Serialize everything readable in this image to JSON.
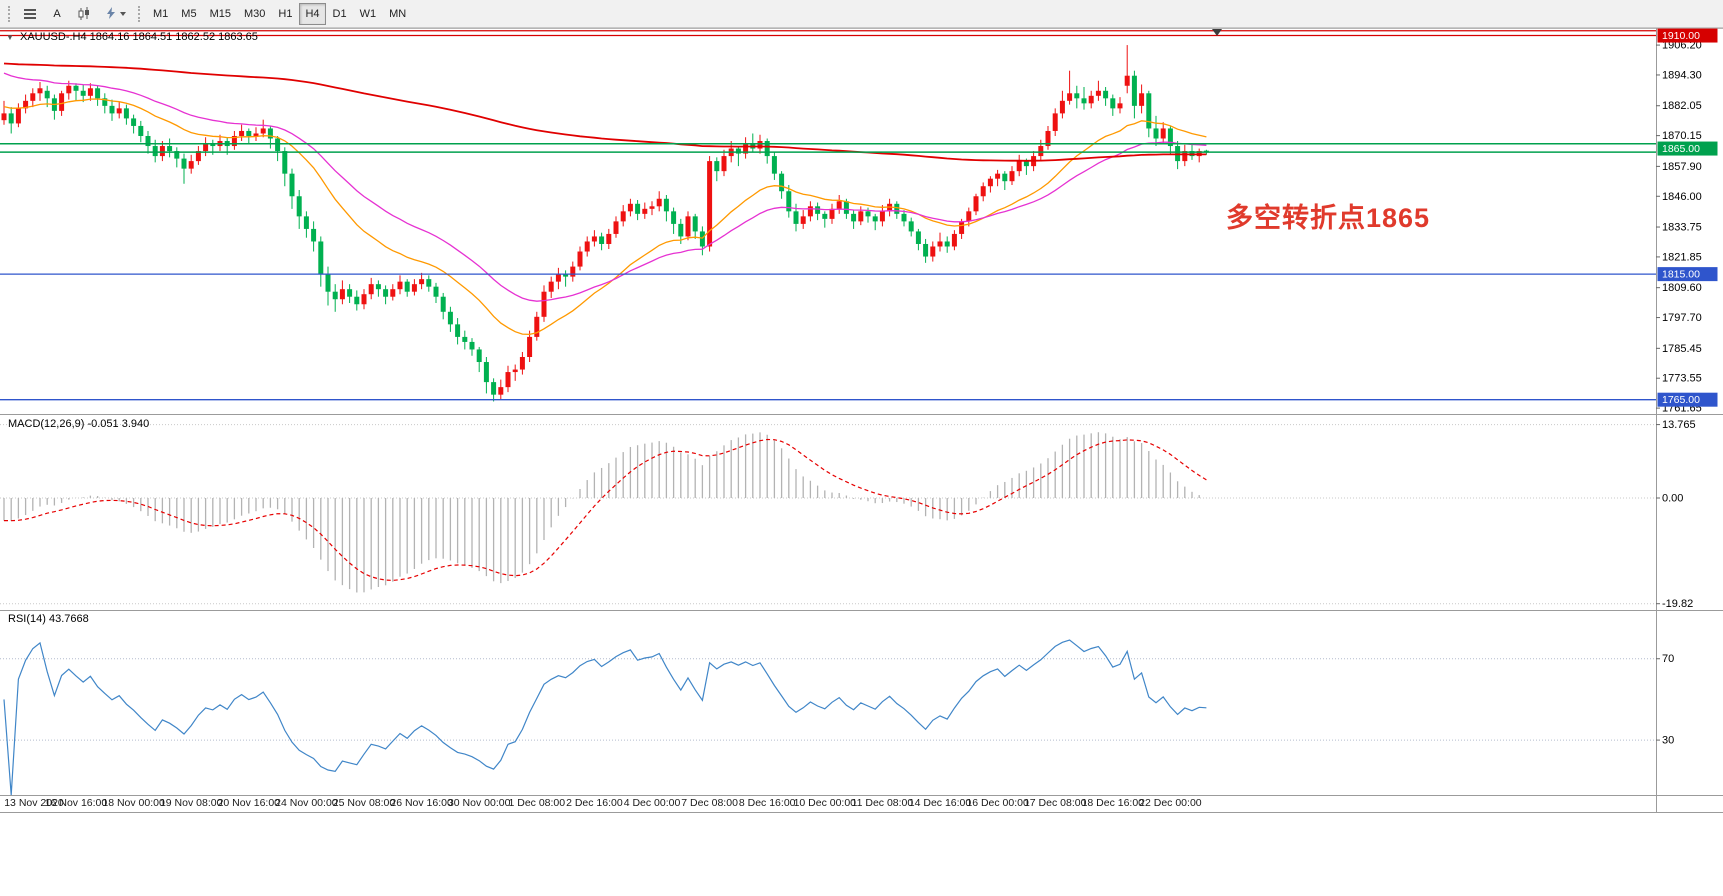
{
  "toolbar": {
    "font_button_label": "A",
    "timeframes": [
      "M1",
      "M5",
      "M15",
      "M30",
      "H1",
      "H4",
      "D1",
      "W1",
      "MN"
    ],
    "active_timeframe": "H4"
  },
  "chart_data": {
    "type": "candlestick",
    "symbol": "XAUUSD-",
    "timeframe": "H4",
    "ohlc_label": "XAUUSD-.H4 1864.16 1864.51 1862.52 1863.65",
    "current_ohlc": {
      "open": 1864.16,
      "high": 1864.51,
      "low": 1862.52,
      "close": 1863.65
    },
    "annotation": {
      "text": "多空转折点1865",
      "color": "#e03a2c"
    },
    "up_color": "#ee1111",
    "down_color": "#00b050",
    "price_axis": {
      "range": [
        1759.7,
        1913.0
      ],
      "ticks": [
        1906.2,
        1894.3,
        1882.05,
        1870.15,
        1857.9,
        1846.0,
        1833.75,
        1821.85,
        1809.6,
        1797.7,
        1785.45,
        1773.55,
        1761.65
      ]
    },
    "h_lines": [
      {
        "price": 1911.9,
        "color": "#d60000",
        "width": 1.3
      },
      {
        "price": 1910.0,
        "color": "#d60000",
        "width": 1.3
      },
      {
        "price": 1866.9,
        "color": "#00a14e",
        "width": 1.5
      },
      {
        "price": 1863.6,
        "color": "#00a14e",
        "width": 1.5
      },
      {
        "price": 1815.0,
        "color": "#2f55cc",
        "width": 1.3
      },
      {
        "price": 1765.0,
        "color": "#2f55cc",
        "width": 1.3
      }
    ],
    "price_tags": [
      {
        "price": 1910.0,
        "label": "1910.00",
        "color": "#d60000"
      },
      {
        "price": 1865.0,
        "label": "1865.00",
        "color": "#00a14e"
      },
      {
        "price": 1815.0,
        "label": "1815.00",
        "color": "#2f55cc"
      },
      {
        "price": 1765.0,
        "label": "1765.00",
        "color": "#2f55cc"
      }
    ],
    "moving_averages": [
      {
        "period": 20,
        "seed": 1882,
        "color": "#ff9900",
        "width": 1.3
      },
      {
        "period": 35,
        "seed": 1896,
        "color": "#e632d2",
        "width": 1.3
      },
      {
        "period": 280,
        "seed": 1899,
        "color": "#e00000",
        "width": 1.8
      }
    ],
    "macd": {
      "label": "MACD(12,26,9) -0.051 3.940",
      "fast": 12,
      "slow": 26,
      "signal": 9,
      "seed_fast": 1880,
      "seed_slow": 1884.5,
      "range": [
        -21,
        15
      ],
      "ticks": [
        {
          "value": 13.765,
          "label": "13.765"
        },
        {
          "value": 0,
          "label": "0.00"
        },
        {
          "value": -19.82,
          "label": "-19.82"
        }
      ],
      "hist_color": "#b3b3b3",
      "signal_color": "#e60000"
    },
    "rsi": {
      "label": "RSI(14) 43.7668",
      "period": 14,
      "range": [
        3,
        92
      ],
      "levels": [
        70,
        30
      ],
      "color": "#4086c8"
    },
    "time_labels": [
      {
        "text": "13 Nov 2020",
        "index": 0
      },
      {
        "text": "16 Nov 16:00",
        "index": 10
      },
      {
        "text": "18 Nov 00:00",
        "index": 18
      },
      {
        "text": "19 Nov 08:00",
        "index": 26
      },
      {
        "text": "20 Nov 16:00",
        "index": 34
      },
      {
        "text": "24 Nov 00:00",
        "index": 42
      },
      {
        "text": "25 Nov 08:00",
        "index": 50
      },
      {
        "text": "26 Nov 16:00",
        "index": 58
      },
      {
        "text": "30 Nov 00:00",
        "index": 66
      },
      {
        "text": "1 Dec 08:00",
        "index": 74
      },
      {
        "text": "2 Dec 16:00",
        "index": 82
      },
      {
        "text": "4 Dec 00:00",
        "index": 90
      },
      {
        "text": "7 Dec 08:00",
        "index": 98
      },
      {
        "text": "8 Dec 16:00",
        "index": 106
      },
      {
        "text": "10 Dec 00:00",
        "index": 114
      },
      {
        "text": "11 Dec 08:00",
        "index": 122
      },
      {
        "text": "14 Dec 16:00",
        "index": 130
      },
      {
        "text": "16 Dec 00:00",
        "index": 138
      },
      {
        "text": "17 Dec 08:00",
        "index": 146
      },
      {
        "text": "18 Dec 16:00",
        "index": 154
      },
      {
        "text": "22 Dec 00:00",
        "index": 162
      }
    ],
    "candles": [
      [
        1876.3,
        1884.0,
        1874.5,
        1879.0
      ],
      [
        1879.0,
        1881.5,
        1871.0,
        1875.0
      ],
      [
        1875.0,
        1883.0,
        1873.5,
        1881.0
      ],
      [
        1881.0,
        1886.5,
        1879.0,
        1884.0
      ],
      [
        1884.0,
        1889.0,
        1881.5,
        1887.0
      ],
      [
        1887.0,
        1891.5,
        1884.0,
        1889.0
      ],
      [
        1888.0,
        1890.0,
        1881.5,
        1885.0
      ],
      [
        1885.0,
        1886.5,
        1876.5,
        1880.0
      ],
      [
        1880.0,
        1888.0,
        1878.0,
        1887.0
      ],
      [
        1887.0,
        1892.0,
        1884.5,
        1890.0
      ],
      [
        1890.0,
        1891.0,
        1884.0,
        1888.0
      ],
      [
        1888.0,
        1890.5,
        1883.5,
        1886.0
      ],
      [
        1886.0,
        1891.0,
        1884.0,
        1889.0
      ],
      [
        1889.0,
        1890.0,
        1882.0,
        1885.0
      ],
      [
        1885.0,
        1887.0,
        1879.0,
        1882.0
      ],
      [
        1882.0,
        1884.5,
        1876.0,
        1879.0
      ],
      [
        1879.0,
        1883.5,
        1877.0,
        1881.0
      ],
      [
        1881.0,
        1882.5,
        1874.5,
        1877.0
      ],
      [
        1877.0,
        1878.5,
        1871.0,
        1874.0
      ],
      [
        1874.0,
        1876.0,
        1867.5,
        1870.0
      ],
      [
        1870.0,
        1872.0,
        1863.0,
        1866.0
      ],
      [
        1866.0,
        1868.5,
        1859.5,
        1862.0
      ],
      [
        1862.0,
        1868.0,
        1860.0,
        1866.0
      ],
      [
        1866.0,
        1869.0,
        1861.5,
        1864.0
      ],
      [
        1864.0,
        1865.5,
        1857.5,
        1861.0
      ],
      [
        1861.0,
        1863.0,
        1851.0,
        1857.0
      ],
      [
        1857.0,
        1862.5,
        1855.0,
        1860.0
      ],
      [
        1860.0,
        1866.0,
        1858.5,
        1864.0
      ],
      [
        1864.0,
        1869.5,
        1862.0,
        1867.0
      ],
      [
        1867.0,
        1868.5,
        1862.5,
        1866.0
      ],
      [
        1866.0,
        1870.5,
        1864.0,
        1868.0
      ],
      [
        1868.0,
        1869.5,
        1862.5,
        1866.0
      ],
      [
        1866.0,
        1872.0,
        1864.5,
        1870.0
      ],
      [
        1870.0,
        1874.5,
        1868.0,
        1872.0
      ],
      [
        1872.0,
        1873.0,
        1867.0,
        1870.0
      ],
      [
        1870.0,
        1873.5,
        1868.0,
        1871.0
      ],
      [
        1871.0,
        1876.5,
        1869.5,
        1873.0
      ],
      [
        1873.0,
        1874.0,
        1865.0,
        1869.0
      ],
      [
        1869.0,
        1870.0,
        1860.0,
        1864.0
      ],
      [
        1864.0,
        1865.5,
        1850.0,
        1855.0
      ],
      [
        1855.0,
        1857.0,
        1841.0,
        1846.0
      ],
      [
        1846.0,
        1848.5,
        1833.0,
        1838.0
      ],
      [
        1838.0,
        1840.0,
        1829.5,
        1833.0
      ],
      [
        1833.0,
        1836.0,
        1824.0,
        1828.0
      ],
      [
        1828.0,
        1830.0,
        1810.0,
        1815.0
      ],
      [
        1815.0,
        1818.0,
        1802.5,
        1808.0
      ],
      [
        1808.0,
        1811.0,
        1800.0,
        1805.0
      ],
      [
        1805.0,
        1812.5,
        1803.0,
        1809.0
      ],
      [
        1809.0,
        1811.0,
        1803.5,
        1806.0
      ],
      [
        1806.0,
        1808.5,
        1800.5,
        1803.0
      ],
      [
        1803.0,
        1809.0,
        1801.0,
        1807.0
      ],
      [
        1807.0,
        1813.5,
        1805.0,
        1811.0
      ],
      [
        1811.0,
        1812.5,
        1806.0,
        1809.0
      ],
      [
        1809.0,
        1810.5,
        1803.0,
        1806.0
      ],
      [
        1806.0,
        1811.0,
        1804.5,
        1809.0
      ],
      [
        1809.0,
        1814.5,
        1807.0,
        1812.0
      ],
      [
        1812.0,
        1813.0,
        1806.0,
        1808.0
      ],
      [
        1808.0,
        1813.0,
        1806.5,
        1811.0
      ],
      [
        1811.0,
        1815.5,
        1809.0,
        1813.0
      ],
      [
        1813.0,
        1814.5,
        1808.0,
        1810.0
      ],
      [
        1810.0,
        1811.5,
        1803.5,
        1806.0
      ],
      [
        1806.0,
        1807.5,
        1797.0,
        1800.0
      ],
      [
        1800.0,
        1802.0,
        1792.0,
        1795.0
      ],
      [
        1795.0,
        1797.5,
        1787.0,
        1790.0
      ],
      [
        1790.0,
        1792.5,
        1785.0,
        1788.0
      ],
      [
        1788.0,
        1789.5,
        1782.5,
        1785.0
      ],
      [
        1785.0,
        1786.0,
        1776.0,
        1780.0
      ],
      [
        1780.0,
        1782.0,
        1767.5,
        1772.0
      ],
      [
        1772.0,
        1773.5,
        1764.3,
        1767.0
      ],
      [
        1767.0,
        1773.0,
        1765.0,
        1770.0
      ],
      [
        1770.0,
        1778.5,
        1768.0,
        1776.0
      ],
      [
        1776.0,
        1779.0,
        1772.5,
        1777.0
      ],
      [
        1777.0,
        1784.0,
        1775.0,
        1782.0
      ],
      [
        1782.0,
        1792.5,
        1780.0,
        1790.0
      ],
      [
        1790.0,
        1800.0,
        1788.5,
        1798.0
      ],
      [
        1798.0,
        1810.5,
        1796.0,
        1808.0
      ],
      [
        1808.0,
        1814.0,
        1805.5,
        1812.0
      ],
      [
        1812.0,
        1817.5,
        1809.0,
        1815.0
      ],
      [
        1815.0,
        1816.5,
        1810.0,
        1814.0
      ],
      [
        1814.0,
        1820.0,
        1812.0,
        1818.0
      ],
      [
        1818.0,
        1826.0,
        1816.5,
        1824.0
      ],
      [
        1824.0,
        1830.0,
        1822.0,
        1828.0
      ],
      [
        1828.0,
        1832.5,
        1826.0,
        1830.0
      ],
      [
        1830.0,
        1831.5,
        1824.5,
        1827.0
      ],
      [
        1827.0,
        1833.0,
        1825.0,
        1831.0
      ],
      [
        1831.0,
        1838.0,
        1829.5,
        1836.0
      ],
      [
        1836.0,
        1842.5,
        1834.0,
        1840.0
      ],
      [
        1840.0,
        1845.0,
        1838.0,
        1843.0
      ],
      [
        1843.0,
        1844.5,
        1836.5,
        1839.0
      ],
      [
        1839.0,
        1843.5,
        1837.0,
        1841.0
      ],
      [
        1841.0,
        1844.0,
        1838.5,
        1842.0
      ],
      [
        1842.0,
        1848.0,
        1840.0,
        1845.0
      ],
      [
        1845.0,
        1846.5,
        1836.0,
        1840.0
      ],
      [
        1840.0,
        1841.5,
        1831.0,
        1835.0
      ],
      [
        1835.0,
        1837.0,
        1827.0,
        1830.0
      ],
      [
        1830.0,
        1840.0,
        1828.5,
        1838.0
      ],
      [
        1838.0,
        1839.0,
        1829.0,
        1832.0
      ],
      [
        1832.0,
        1834.0,
        1822.5,
        1826.0
      ],
      [
        1826.0,
        1862.0,
        1824.0,
        1860.0
      ],
      [
        1860.0,
        1861.5,
        1852.0,
        1856.0
      ],
      [
        1856.0,
        1864.5,
        1854.0,
        1862.0
      ],
      [
        1862.0,
        1868.0,
        1859.5,
        1865.0
      ],
      [
        1865.0,
        1866.0,
        1858.0,
        1863.0
      ],
      [
        1863.0,
        1869.5,
        1861.0,
        1867.0
      ],
      [
        1867.0,
        1871.0,
        1863.5,
        1865.0
      ],
      [
        1865.0,
        1870.5,
        1863.0,
        1868.0
      ],
      [
        1868.0,
        1869.0,
        1859.0,
        1862.0
      ],
      [
        1862.0,
        1863.5,
        1852.5,
        1855.0
      ],
      [
        1855.0,
        1856.0,
        1845.0,
        1848.0
      ],
      [
        1848.0,
        1850.5,
        1837.5,
        1840.0
      ],
      [
        1840.0,
        1843.0,
        1832.0,
        1835.0
      ],
      [
        1835.0,
        1840.5,
        1833.0,
        1838.0
      ],
      [
        1838.0,
        1844.0,
        1836.0,
        1842.0
      ],
      [
        1842.0,
        1843.5,
        1836.5,
        1839.0
      ],
      [
        1839.0,
        1840.0,
        1833.5,
        1837.0
      ],
      [
        1837.0,
        1843.0,
        1835.0,
        1841.0
      ],
      [
        1841.0,
        1846.5,
        1839.0,
        1844.0
      ],
      [
        1844.0,
        1845.0,
        1837.0,
        1839.0
      ],
      [
        1839.0,
        1840.5,
        1833.0,
        1836.0
      ],
      [
        1836.0,
        1842.0,
        1834.5,
        1840.0
      ],
      [
        1840.0,
        1841.5,
        1835.5,
        1838.0
      ],
      [
        1838.0,
        1839.0,
        1832.5,
        1836.0
      ],
      [
        1836.0,
        1842.5,
        1834.0,
        1840.0
      ],
      [
        1840.0,
        1845.0,
        1838.0,
        1843.0
      ],
      [
        1843.0,
        1844.0,
        1837.0,
        1839.0
      ],
      [
        1839.0,
        1840.5,
        1834.0,
        1836.0
      ],
      [
        1836.0,
        1837.5,
        1830.0,
        1832.0
      ],
      [
        1832.0,
        1833.0,
        1824.5,
        1827.0
      ],
      [
        1827.0,
        1829.0,
        1819.5,
        1822.0
      ],
      [
        1822.0,
        1828.0,
        1820.0,
        1826.0
      ],
      [
        1826.0,
        1831.5,
        1824.0,
        1828.0
      ],
      [
        1828.0,
        1830.0,
        1823.5,
        1826.0
      ],
      [
        1826.0,
        1832.5,
        1824.5,
        1831.0
      ],
      [
        1831.0,
        1837.0,
        1829.0,
        1836.0
      ],
      [
        1836.0,
        1841.5,
        1834.0,
        1840.0
      ],
      [
        1840.0,
        1847.0,
        1838.5,
        1846.0
      ],
      [
        1846.0,
        1851.5,
        1844.0,
        1850.0
      ],
      [
        1850.0,
        1854.0,
        1847.5,
        1853.0
      ],
      [
        1853.0,
        1856.5,
        1850.0,
        1855.0
      ],
      [
        1855.0,
        1856.0,
        1848.5,
        1852.0
      ],
      [
        1852.0,
        1858.0,
        1850.5,
        1856.0
      ],
      [
        1856.0,
        1862.5,
        1854.0,
        1860.0
      ],
      [
        1860.0,
        1861.0,
        1854.5,
        1858.0
      ],
      [
        1858.0,
        1864.0,
        1856.0,
        1862.0
      ],
      [
        1862.0,
        1868.5,
        1860.0,
        1866.0
      ],
      [
        1866.0,
        1874.0,
        1864.5,
        1872.0
      ],
      [
        1872.0,
        1881.0,
        1870.0,
        1879.0
      ],
      [
        1879.0,
        1888.0,
        1877.0,
        1884.0
      ],
      [
        1884.0,
        1896.0,
        1882.5,
        1887.0
      ],
      [
        1887.0,
        1890.0,
        1881.0,
        1885.0
      ],
      [
        1885.0,
        1889.5,
        1880.5,
        1883.0
      ],
      [
        1883.0,
        1888.0,
        1881.0,
        1886.0
      ],
      [
        1886.0,
        1892.0,
        1884.0,
        1888.0
      ],
      [
        1888.0,
        1889.5,
        1882.0,
        1885.0
      ],
      [
        1885.0,
        1886.5,
        1878.0,
        1881.0
      ],
      [
        1881.0,
        1885.5,
        1879.0,
        1883.0
      ],
      [
        1890.0,
        1906.2,
        1887.0,
        1894.0
      ],
      [
        1894.0,
        1896.0,
        1877.0,
        1882.0
      ],
      [
        1882.0,
        1890.5,
        1879.0,
        1887.0
      ],
      [
        1887.0,
        1888.0,
        1869.5,
        1873.0
      ],
      [
        1873.0,
        1878.0,
        1866.0,
        1869.0
      ],
      [
        1869.0,
        1875.5,
        1867.0,
        1873.0
      ],
      [
        1873.0,
        1874.0,
        1862.5,
        1866.0
      ],
      [
        1866.0,
        1868.0,
        1856.8,
        1860.0
      ],
      [
        1860.0,
        1866.5,
        1858.0,
        1864.0
      ],
      [
        1864.0,
        1867.0,
        1860.5,
        1862.0
      ],
      [
        1862.0,
        1865.0,
        1859.5,
        1864.0
      ],
      [
        1864.16,
        1864.51,
        1862.52,
        1863.65
      ]
    ]
  }
}
